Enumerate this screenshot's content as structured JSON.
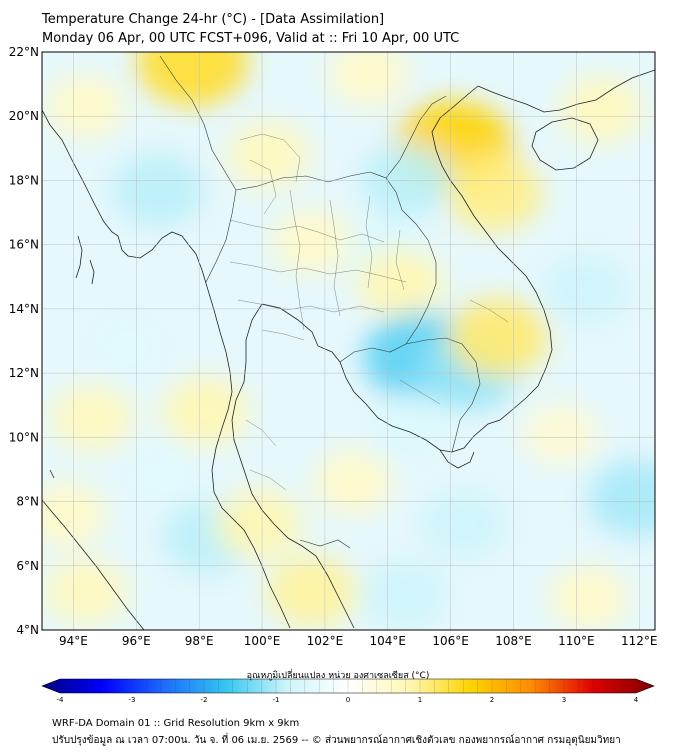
{
  "title": {
    "line1": "Temperature Change 24-hr (°C) - [Data Assimilation]",
    "line2": "Monday 06 Apr, 00 UTC FCST+096, Valid at :: Fri 10 Apr, 00 UTC"
  },
  "map": {
    "lat_range": [
      4,
      22
    ],
    "lon_range": [
      93,
      112.5
    ],
    "lat_ticks": [
      4,
      6,
      8,
      10,
      12,
      14,
      16,
      18,
      20,
      22
    ],
    "lon_ticks": [
      94,
      96,
      98,
      100,
      102,
      104,
      106,
      108,
      110,
      112
    ],
    "lat_tick_labels": [
      "4°N",
      "6°N",
      "8°N",
      "10°N",
      "12°N",
      "14°N",
      "16°N",
      "18°N",
      "20°N",
      "22°N"
    ],
    "lon_tick_labels": [
      "94°E",
      "96°E",
      "98°E",
      "100°E",
      "102°E",
      "104°E",
      "106°E",
      "108°E",
      "110°E",
      "112°E"
    ],
    "grid": true,
    "anomalies": [
      {
        "lon": 97.8,
        "lat": 21.7,
        "value": 1.4
      },
      {
        "lon": 94.4,
        "lat": 20.3,
        "value": 0.6
      },
      {
        "lon": 100.2,
        "lat": 18.8,
        "value": 0.7
      },
      {
        "lon": 106.1,
        "lat": 19.0,
        "value": 1.6
      },
      {
        "lon": 107.4,
        "lat": 17.6,
        "value": 1.0
      },
      {
        "lon": 103.4,
        "lat": 21.3,
        "value": 0.6
      },
      {
        "lon": 110.8,
        "lat": 20.2,
        "value": 0.7
      },
      {
        "lon": 96.7,
        "lat": 17.7,
        "value": -0.9
      },
      {
        "lon": 104.6,
        "lat": 18.0,
        "value": -0.9
      },
      {
        "lon": 103.9,
        "lat": 15.9,
        "value": -0.6
      },
      {
        "lon": 101.6,
        "lat": 16.1,
        "value": 0.6
      },
      {
        "lon": 104.4,
        "lat": 14.8,
        "value": 0.8
      },
      {
        "lon": 105.0,
        "lat": 12.5,
        "value": -1.4
      },
      {
        "lon": 106.6,
        "lat": 12.1,
        "value": -1.1
      },
      {
        "lon": 107.5,
        "lat": 13.1,
        "value": 1.1
      },
      {
        "lon": 110.3,
        "lat": 14.6,
        "value": -0.8
      },
      {
        "lon": 98.2,
        "lat": 10.8,
        "value": 0.8
      },
      {
        "lon": 95.7,
        "lat": 12.8,
        "value": -0.5
      },
      {
        "lon": 94.6,
        "lat": 10.6,
        "value": 0.7
      },
      {
        "lon": 93.8,
        "lat": 7.6,
        "value": 0.6
      },
      {
        "lon": 94.4,
        "lat": 5.2,
        "value": 0.7
      },
      {
        "lon": 96.9,
        "lat": 8.8,
        "value": -0.5
      },
      {
        "lon": 98.3,
        "lat": 6.9,
        "value": -0.9
      },
      {
        "lon": 99.9,
        "lat": 7.3,
        "value": 0.8
      },
      {
        "lon": 101.6,
        "lat": 5.2,
        "value": 0.9
      },
      {
        "lon": 102.9,
        "lat": 8.6,
        "value": 0.6
      },
      {
        "lon": 104.7,
        "lat": 10.4,
        "value": -0.6
      },
      {
        "lon": 106.4,
        "lat": 7.3,
        "value": -0.8
      },
      {
        "lon": 104.5,
        "lat": 5.1,
        "value": -0.8
      },
      {
        "lon": 111.9,
        "lat": 8.1,
        "value": -1.0
      },
      {
        "lon": 109.5,
        "lat": 10.1,
        "value": 0.5
      },
      {
        "lon": 110.4,
        "lat": 5.0,
        "value": 0.6
      }
    ]
  },
  "colorbar": {
    "title": "อุณหภูมิเปลี่ยนแปลง หน่วย องศาเซลเซียส (°C)",
    "min": -4,
    "max": 4,
    "ticks": [
      -4,
      -3,
      -2,
      -1,
      0,
      1,
      2,
      3,
      4
    ],
    "tick_labels": [
      "-4",
      "-3",
      "-2",
      "-1",
      "0",
      "1",
      "2",
      "3",
      "4"
    ],
    "stops": [
      "#00007f",
      "#0000ff",
      "#1d6cff",
      "#33c6f0",
      "#cdf5fb",
      "#ffffff",
      "#fff7b3",
      "#ffd400",
      "#ff8c00",
      "#e00000",
      "#7f0000"
    ]
  },
  "footer": {
    "line1": "WRF-DA Domain 01 :: Grid Resolution 9km x 9km",
    "line2": "ปรับปรุงข้อมูล ณ เวลา 07:00น. วัน จ. ที่ 06 เม.ย. 2569 -- © ส่วนพยากรณ์อากาศเชิงตัวเลข กองพยากรณ์อากาศ กรมอุตุนิยมวิทยา"
  }
}
